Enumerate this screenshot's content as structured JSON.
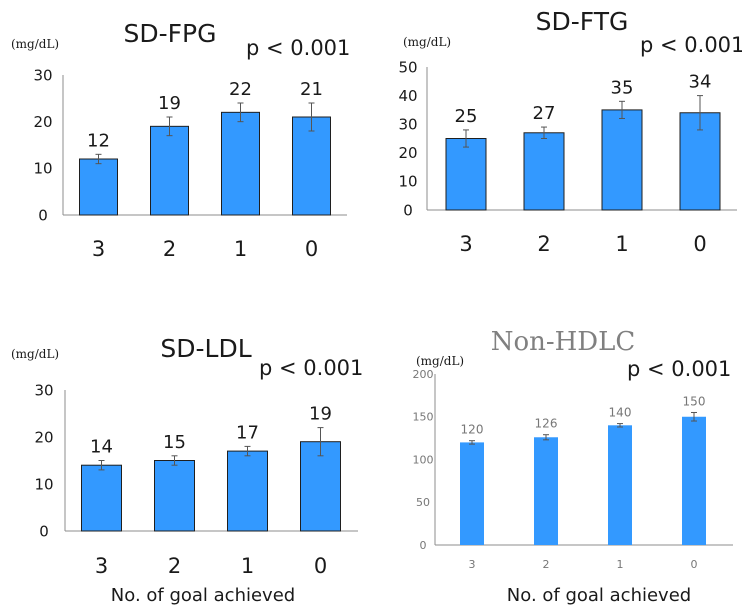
{
  "colors": {
    "bar": "#3399ff",
    "bar_edge": "#1f1f1f",
    "axis": "#595959",
    "text": "#1a1a1a",
    "grey_text": "#777777",
    "grey_title": "#808080"
  },
  "chart_data": [
    {
      "type": "bar",
      "title": "SD-FPG",
      "unit": "(mg/dL)",
      "pvalue": "p < 0.001",
      "xlabel": "",
      "categories": [
        "3",
        "2",
        "1",
        "0"
      ],
      "values": [
        12,
        19,
        22,
        21
      ],
      "data_labels": [
        "12",
        "19",
        "22",
        "21"
      ],
      "error": [
        1,
        2,
        2,
        3
      ],
      "ylim": [
        0,
        30
      ],
      "yticks": [
        "0",
        "10",
        "20",
        "30"
      ],
      "grid": false
    },
    {
      "type": "bar",
      "title": "SD-FTG",
      "unit": "(mg/dL)",
      "pvalue": "p < 0.001",
      "xlabel": "",
      "categories": [
        "3",
        "2",
        "1",
        "0"
      ],
      "values": [
        25,
        27,
        35,
        34
      ],
      "data_labels": [
        "25",
        "27",
        "35",
        "34"
      ],
      "error": [
        3,
        2,
        3,
        6
      ],
      "ylim": [
        0,
        50
      ],
      "yticks": [
        "0",
        "10",
        "20",
        "30",
        "40",
        "50"
      ],
      "grid": false
    },
    {
      "type": "bar",
      "title": "SD-LDL",
      "unit": "(mg/dL)",
      "pvalue": "p < 0.001",
      "xlabel": "No. of goal achieved",
      "categories": [
        "3",
        "2",
        "1",
        "0"
      ],
      "values": [
        14,
        15,
        17,
        19
      ],
      "data_labels": [
        "14",
        "15",
        "17",
        "19"
      ],
      "error": [
        1,
        1,
        1,
        3
      ],
      "ylim": [
        0,
        30
      ],
      "yticks": [
        "0",
        "10",
        "20",
        "30"
      ],
      "grid": false
    },
    {
      "type": "bar",
      "title": "Non-HDLC",
      "unit": "(mg/dL)",
      "pvalue": "p < 0.001",
      "xlabel": "No. of goal achieved",
      "categories": [
        "3",
        "2",
        "1",
        "0"
      ],
      "values": [
        120,
        126,
        140,
        150
      ],
      "data_labels": [
        "120",
        "126",
        "140",
        "150"
      ],
      "error": [
        2,
        3,
        2,
        5
      ],
      "ylim": [
        0,
        200
      ],
      "yticks": [
        "0",
        "50",
        "100",
        "150",
        "200"
      ],
      "grid": false
    }
  ]
}
